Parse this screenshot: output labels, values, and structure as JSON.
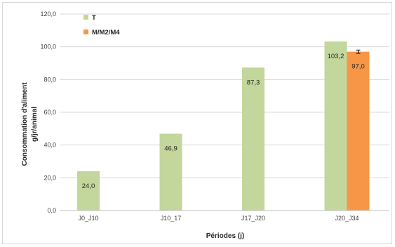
{
  "chart_data": {
    "type": "bar",
    "categories": [
      "J0_J10",
      "J10_17",
      "J17_J20",
      "J20_J34"
    ],
    "series": [
      {
        "name": "T",
        "color": "#c3d69b",
        "values": [
          24.0,
          46.9,
          87.3,
          103.2
        ],
        "labels": [
          "24,0",
          "46,9",
          "87,3",
          "103,2"
        ]
      },
      {
        "name": "M/M2/M4",
        "color": "#f79646",
        "values": [
          null,
          null,
          null,
          97.0
        ],
        "labels": [
          "",
          "",
          "",
          "97,0"
        ],
        "error": [
          null,
          null,
          null,
          1.0
        ]
      }
    ],
    "yticks": [
      "0,0",
      "20,0",
      "40,0",
      "60,0",
      "80,0",
      "100,0",
      "120,0"
    ],
    "ylim": [
      0,
      120
    ],
    "xlabel": "Périodes (j)",
    "ylabel_line1": "Consommation d'aliment",
    "ylabel_line2": "g/jr/animal",
    "grid": true,
    "legend_position": "top-left"
  }
}
